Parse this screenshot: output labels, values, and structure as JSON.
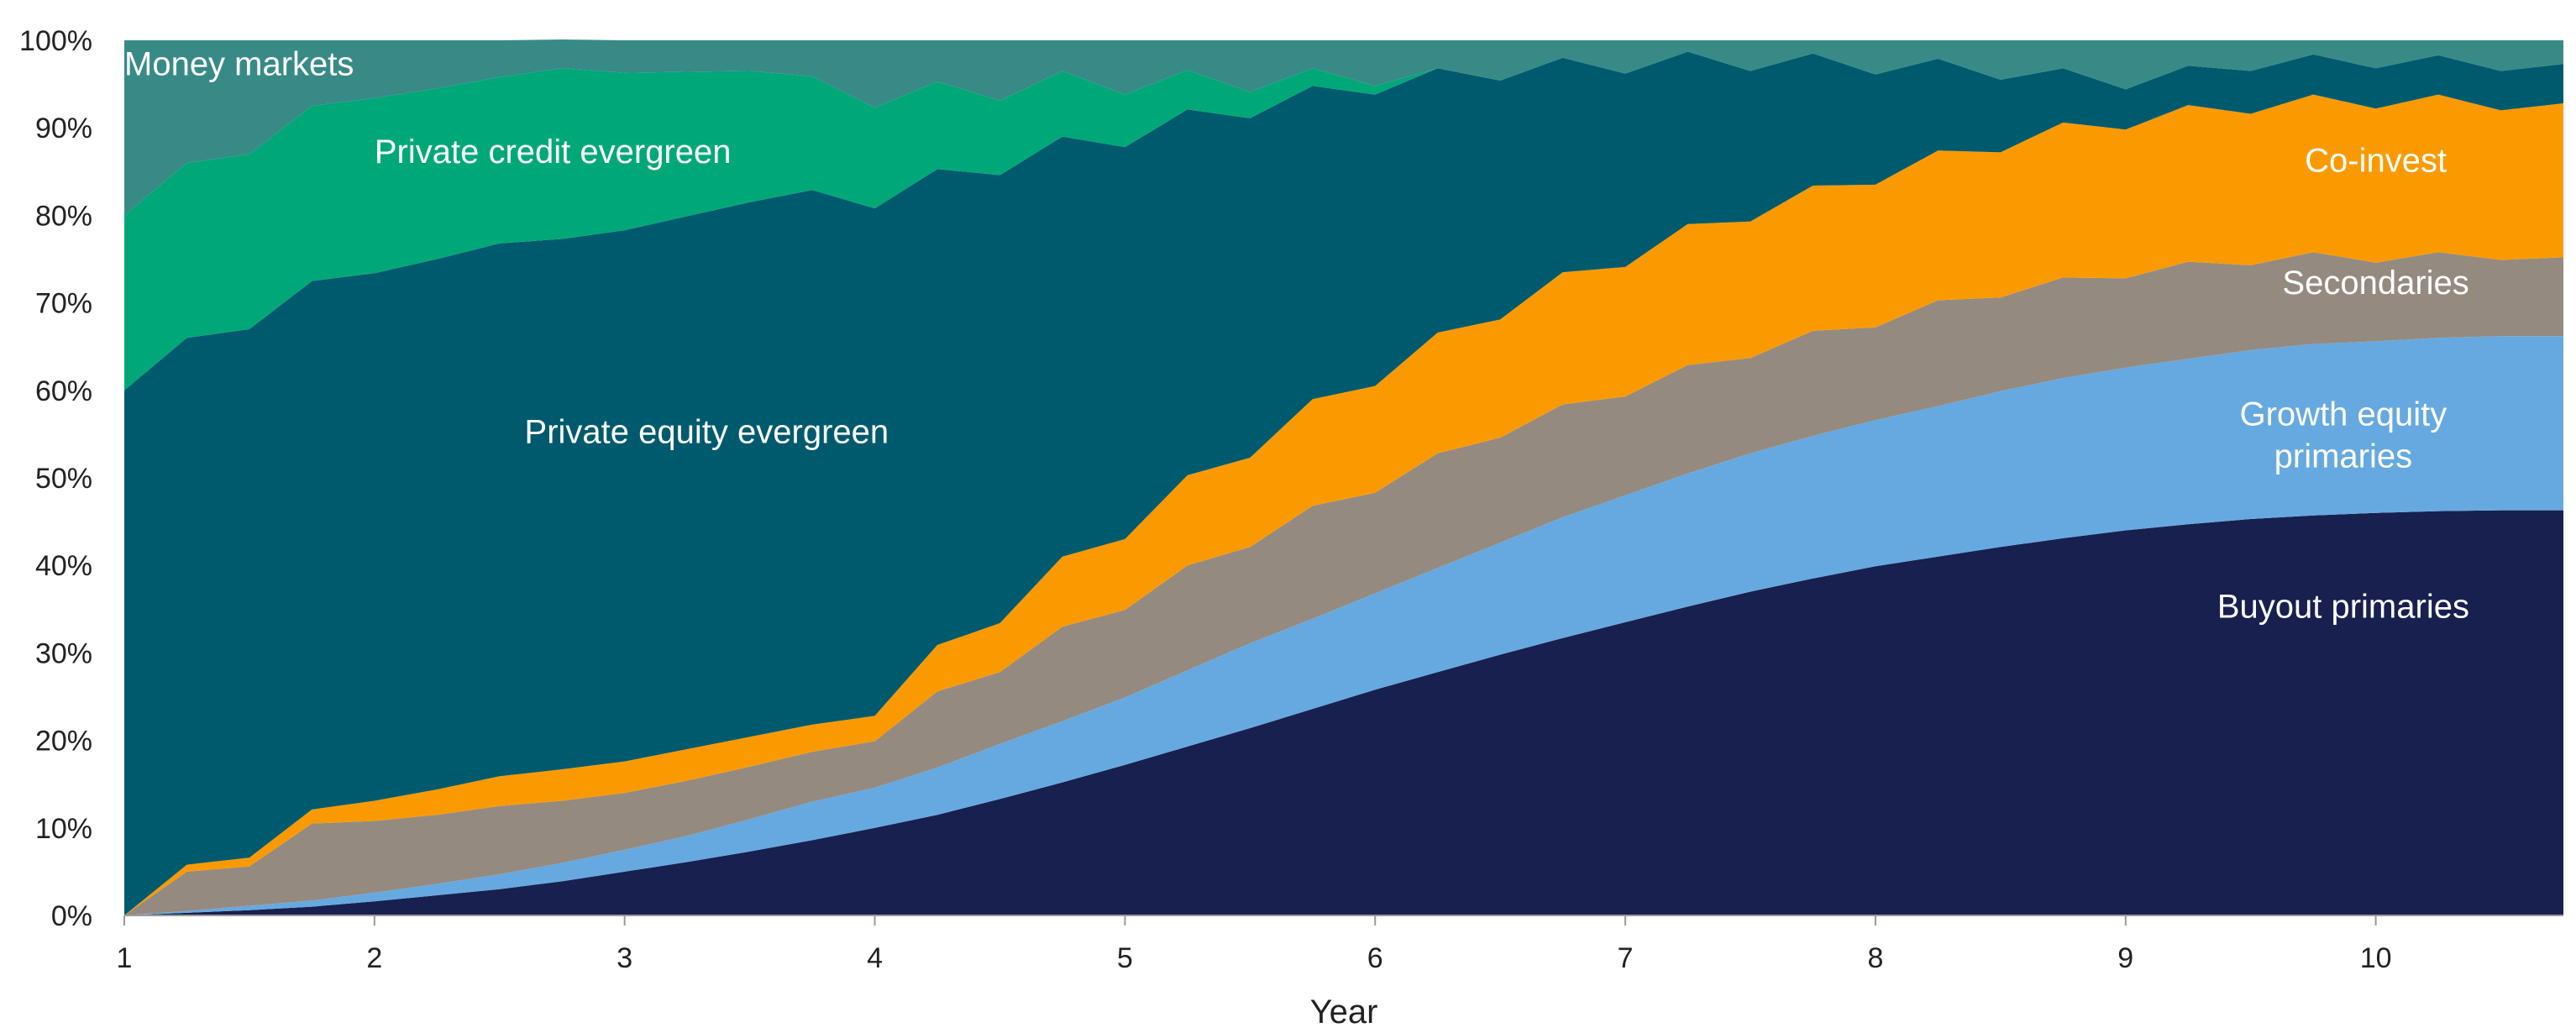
{
  "chart_data": {
    "type": "area",
    "stacked": true,
    "percent": true,
    "title": "",
    "xlabel": "Year",
    "ylabel": "",
    "xlim": [
      1,
      10.75
    ],
    "ylim": [
      0,
      100
    ],
    "x_ticks": [
      "1",
      "2",
      "3",
      "4",
      "5",
      "6",
      "7",
      "8",
      "9",
      "10"
    ],
    "y_ticks": [
      "0%",
      "10%",
      "20%",
      "30%",
      "40%",
      "50%",
      "60%",
      "70%",
      "80%",
      "90%",
      "100%"
    ],
    "grid": false,
    "legend": "none (series labelled directly on the chart)",
    "x": [
      1,
      1.25,
      1.5,
      1.75,
      2,
      2.25,
      2.5,
      2.75,
      3,
      3.25,
      3.5,
      3.75,
      4,
      4.25,
      4.5,
      4.75,
      5,
      5.25,
      5.5,
      5.75,
      6,
      6.25,
      6.5,
      6.75,
      7,
      7.25,
      7.5,
      7.75,
      8,
      8.25,
      8.5,
      8.75,
      9,
      9.25,
      9.5,
      9.75,
      10,
      10.25,
      10.5,
      10.75
    ],
    "series": [
      {
        "name": "Buyout primaries",
        "color": "#17204f",
        "values": [
          0,
          0.3,
          0.6,
          1.0,
          1.6,
          2.3,
          3.0,
          3.9,
          5.0,
          6.1,
          7.3,
          8.6,
          10.0,
          11.5,
          13.3,
          15.2,
          17.2,
          19.3,
          21.4,
          23.6,
          25.8,
          27.8,
          29.8,
          31.7,
          33.5,
          35.3,
          37.0,
          38.5,
          39.9,
          41.0,
          42.1,
          43.1,
          44.0,
          44.7,
          45.3,
          45.7,
          46.0,
          46.2,
          46.3,
          46.3
        ]
      },
      {
        "name": "Growth equity primaries",
        "color": "#66a9e0",
        "values": [
          0,
          0.2,
          0.5,
          0.7,
          1.0,
          1.3,
          1.7,
          2.1,
          2.5,
          3.0,
          3.7,
          4.4,
          4.6,
          5.4,
          6.3,
          7.0,
          7.7,
          8.7,
          9.7,
          10.3,
          11.0,
          11.9,
          12.8,
          13.8,
          14.5,
          15.2,
          15.8,
          16.3,
          16.7,
          17.2,
          17.8,
          18.3,
          18.6,
          18.9,
          19.3,
          19.6,
          19.6,
          19.8,
          19.9,
          19.9
        ]
      },
      {
        "name": "Secondaries",
        "color": "#958a80",
        "values": [
          0,
          4.5,
          4.5,
          8.8,
          8.2,
          7.9,
          7.8,
          7.1,
          6.5,
          6.3,
          6.0,
          5.7,
          5.3,
          8.7,
          8.2,
          10.8,
          10.0,
          12.0,
          11.0,
          12.9,
          11.5,
          13.1,
          12.0,
          12.9,
          11.3,
          12.4,
          10.9,
          12.0,
          10.6,
          12.1,
          10.7,
          11.5,
          10.2,
          11.1,
          9.7,
          10.5,
          9.0,
          9.8,
          8.7,
          9.0
        ]
      },
      {
        "name": "Co-invest",
        "color": "#fb9a00",
        "values": [
          0,
          0.8,
          1.0,
          1.6,
          2.3,
          2.9,
          3.4,
          3.6,
          3.6,
          3.6,
          3.4,
          3.1,
          2.9,
          5.3,
          5.6,
          8.0,
          8.1,
          10.3,
          10.2,
          12.2,
          12.2,
          13.8,
          13.5,
          15.1,
          14.8,
          16.1,
          15.6,
          16.6,
          16.3,
          17.1,
          16.6,
          17.7,
          17.0,
          17.9,
          17.3,
          18.0,
          17.6,
          18.0,
          17.1,
          17.6
        ]
      },
      {
        "name": "Private equity evergreen",
        "color": "#005a6e",
        "values": [
          60,
          60.2,
          60.4,
          60.4,
          60.3,
          60.6,
          60.9,
          60.6,
          60.7,
          60.9,
          61.1,
          61.1,
          58.0,
          54.4,
          51.2,
          48.0,
          44.8,
          41.8,
          38.8,
          35.8,
          33.3,
          30.2,
          27.3,
          24.5,
          22.1,
          19.7,
          17.2,
          15.1,
          12.6,
          10.5,
          8.3,
          6.2,
          4.6,
          4.5,
          4.9,
          4.6,
          4.6,
          4.5,
          4.5,
          4.5
        ]
      },
      {
        "name": "Private credit evergreen",
        "color": "#00a878",
        "values": [
          20,
          20,
          20,
          20,
          20,
          19.5,
          19,
          19.5,
          18,
          16.5,
          15,
          13,
          11.5,
          10,
          8.5,
          7.5,
          6,
          4.5,
          3,
          2,
          1,
          0,
          0,
          0,
          0,
          0,
          0,
          0,
          0,
          0,
          0,
          0,
          0,
          0,
          0,
          0,
          0,
          0,
          0,
          0
        ]
      },
      {
        "name": "Money markets",
        "color": "#388a87",
        "values": [
          20,
          14,
          13,
          7.5,
          6.6,
          5.5,
          4.2,
          3.3,
          3.7,
          3.6,
          3.5,
          4.1,
          7.7,
          4.7,
          6.9,
          3.5,
          6.2,
          3.4,
          5.9,
          3.2,
          5.2,
          3.2,
          4.6,
          2.0,
          3.8,
          1.3,
          3.5,
          1.5,
          3.9,
          2.1,
          4.5,
          3.2,
          5.6,
          2.9,
          3.5,
          1.6,
          3.2,
          1.7,
          3.5,
          2.7
        ]
      }
    ],
    "annotations": [
      {
        "text": "Money markets",
        "x": 1.0,
        "y": 96
      },
      {
        "text": "Private credit evergreen",
        "x": 2.0,
        "y": 86
      },
      {
        "text": "Private equity evergreen",
        "x": 2.6,
        "y": 54
      },
      {
        "text": "Co-invest",
        "x": 10.0,
        "y": 85
      },
      {
        "text": "Secondaries",
        "x": 10.0,
        "y": 71
      },
      {
        "text": "Growth equity primaries",
        "x": 9.87,
        "y": 56
      },
      {
        "text": "Buyout primaries",
        "x": 9.87,
        "y": 34
      }
    ]
  }
}
